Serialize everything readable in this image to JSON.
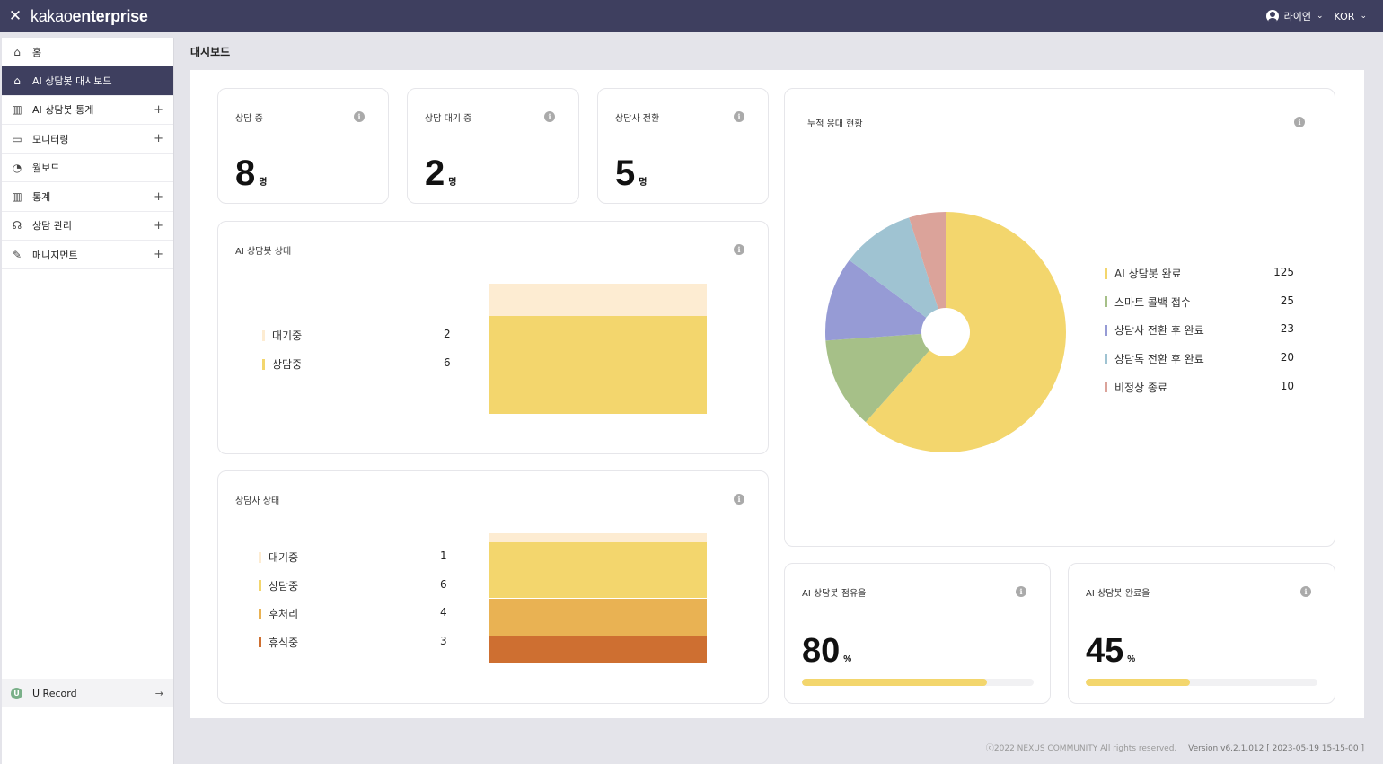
{
  "header": {
    "logo_light": "kakao",
    "logo_bold": "enterprise",
    "user_name": "라이언",
    "language": "KOR"
  },
  "sidebar": {
    "items": [
      {
        "label": "홈",
        "icon": "home-icon",
        "expandable": false
      },
      {
        "label": "AI 상담봇 대시보드",
        "icon": "home-icon",
        "expandable": false,
        "active": true
      },
      {
        "label": "AI 상담봇 통계",
        "icon": "bar-chart-icon",
        "expandable": true
      },
      {
        "label": "모니터링",
        "icon": "monitor-icon",
        "expandable": true
      },
      {
        "label": "월보드",
        "icon": "pie-chart-icon",
        "expandable": false
      },
      {
        "label": "통계",
        "icon": "bar-chart-icon",
        "expandable": true
      },
      {
        "label": "상담 관리",
        "icon": "headset-icon",
        "expandable": true
      },
      {
        "label": "매니지먼트",
        "icon": "edit-document-icon",
        "expandable": true
      }
    ],
    "urecord_badge": "U",
    "urecord_label": "U Record"
  },
  "page_title": "대시보드",
  "stats": [
    {
      "title": "상담 중",
      "value": "8",
      "unit": "명"
    },
    {
      "title": "상담 대기 중",
      "value": "2",
      "unit": "명"
    },
    {
      "title": "상담사 전환",
      "value": "5",
      "unit": "명"
    }
  ],
  "bot_status": {
    "title": "AI 상담봇 상태",
    "items": [
      {
        "label": "대기중",
        "value": 2,
        "color": "#fdecd2"
      },
      {
        "label": "상담중",
        "value": 6,
        "color": "#f3d66d"
      }
    ]
  },
  "agent_status": {
    "title": "상담사 상태",
    "items": [
      {
        "label": "대기중",
        "value": 1,
        "color": "#fdecd2"
      },
      {
        "label": "상담중",
        "value": 6,
        "color": "#f3d66d"
      },
      {
        "label": "후처리",
        "value": 4,
        "color": "#e9b253"
      },
      {
        "label": "휴식중",
        "value": 3,
        "color": "#ce6f31"
      }
    ]
  },
  "cumulative": {
    "title": "누적 응대 현황",
    "items": [
      {
        "label": "AI 상담봇 완료",
        "value": 125,
        "color": "#f3d66d"
      },
      {
        "label": "스마트 콜백 접수",
        "value": 25,
        "color": "#a6c088"
      },
      {
        "label": "상담사 전환 후 완료",
        "value": 23,
        "color": "#969bd5"
      },
      {
        "label": "상담톡 전환 후 완료",
        "value": 20,
        "color": "#9fc3d2"
      },
      {
        "label": "비정상 종료",
        "value": 10,
        "color": "#dba39a"
      }
    ]
  },
  "share_rate": {
    "title": "AI 상담봇 점유율",
    "value": "80",
    "unit": "%",
    "fraction": 0.8
  },
  "completion_rate": {
    "title": "AI 상담봇 완료율",
    "value": "45",
    "unit": "%",
    "fraction": 0.45
  },
  "footer": {
    "copyright": "ⓒ2022 NEXUS COMMUNITY All rights reserved.",
    "version": "Version v6.2.1.012 [ 2023-05-19 15-15-00 ]"
  },
  "icons": {
    "close": "close-icon",
    "info": "info-icon",
    "plus": "plus-icon",
    "arrow": "arrow-right-icon",
    "user": "user-icon",
    "chevron": "chevron-down-icon"
  }
}
